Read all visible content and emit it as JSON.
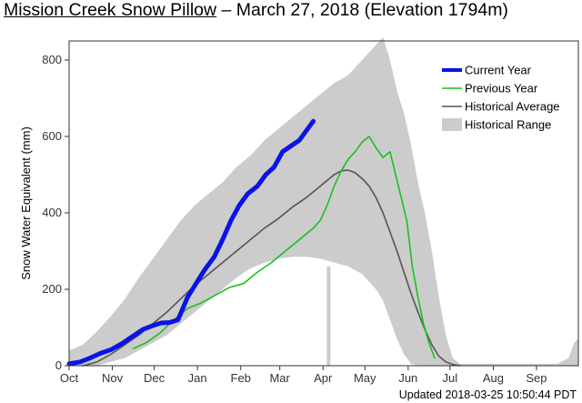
{
  "header": {
    "site": "Mission Creek Snow Pillow",
    "separator": " – ",
    "rest": "March 27, 2018 (Elevation 1794m)"
  },
  "footer": {
    "updated": "Updated 2018-03-25 10:50:44 PDT"
  },
  "chart_data": {
    "type": "line",
    "ylabel": "Snow Water Equivalent (mm)",
    "xlim": [
      0,
      365
    ],
    "ylim": [
      0,
      850
    ],
    "x_ticks": [
      {
        "label": "Oct",
        "x": 0
      },
      {
        "label": "Nov",
        "x": 31
      },
      {
        "label": "Dec",
        "x": 61
      },
      {
        "label": "Jan",
        "x": 92
      },
      {
        "label": "Feb",
        "x": 123
      },
      {
        "label": "Mar",
        "x": 151
      },
      {
        "label": "Apr",
        "x": 182
      },
      {
        "label": "May",
        "x": 212
      },
      {
        "label": "Jun",
        "x": 243
      },
      {
        "label": "Jul",
        "x": 273
      },
      {
        "label": "Aug",
        "x": 304
      },
      {
        "label": "Sep",
        "x": 335
      }
    ],
    "y_ticks": [
      0,
      200,
      400,
      600,
      800
    ],
    "legend_position": "top-right",
    "colors": {
      "current": "#0a14e6",
      "previous": "#19c219",
      "average": "#555555",
      "range": "#cccccc"
    },
    "legend": [
      {
        "key": "current",
        "label": "Current Year"
      },
      {
        "key": "previous",
        "label": "Previous Year"
      },
      {
        "key": "average",
        "label": "Historical Average"
      },
      {
        "key": "range",
        "label": "Historical Range"
      }
    ],
    "series": [
      {
        "name": "Current Year",
        "x": [
          0,
          8,
          15,
          22,
          30,
          38,
          46,
          53,
          60,
          66,
          72,
          78,
          85,
          91,
          97,
          104,
          110,
          116,
          122,
          128,
          135,
          141,
          147,
          153,
          159,
          165,
          170,
          175
        ],
        "y": [
          5,
          10,
          20,
          32,
          42,
          58,
          78,
          95,
          105,
          112,
          113,
          120,
          180,
          215,
          250,
          285,
          330,
          380,
          420,
          450,
          470,
          500,
          520,
          560,
          575,
          590,
          615,
          640
        ]
      },
      {
        "name": "Previous Year",
        "x": [
          46,
          55,
          65,
          75,
          85,
          95,
          105,
          115,
          125,
          135,
          145,
          155,
          165,
          175,
          180,
          185,
          190,
          195,
          200,
          205,
          210,
          215,
          220,
          225,
          230,
          234,
          238,
          242,
          246,
          250,
          254,
          258,
          262
        ],
        "y": [
          45,
          60,
          85,
          120,
          150,
          165,
          185,
          205,
          215,
          245,
          270,
          300,
          330,
          360,
          380,
          420,
          470,
          510,
          540,
          560,
          585,
          600,
          570,
          545,
          560,
          500,
          440,
          380,
          260,
          180,
          110,
          60,
          20
        ]
      },
      {
        "name": "Historical Average",
        "x": [
          10,
          20,
          30,
          40,
          50,
          60,
          70,
          80,
          90,
          100,
          110,
          120,
          130,
          140,
          150,
          160,
          170,
          180,
          190,
          195,
          200,
          205,
          210,
          215,
          220,
          225,
          230,
          235,
          240,
          245,
          250,
          255,
          260,
          265,
          270,
          275,
          280
        ],
        "y": [
          0,
          10,
          30,
          55,
          80,
          110,
          140,
          175,
          210,
          240,
          270,
          300,
          330,
          360,
          385,
          415,
          440,
          470,
          500,
          510,
          512,
          505,
          490,
          470,
          440,
          400,
          350,
          300,
          245,
          190,
          140,
          95,
          55,
          25,
          10,
          3,
          0
        ]
      },
      {
        "name": "Historical Range",
        "x": [
          0,
          10,
          20,
          30,
          40,
          50,
          60,
          70,
          80,
          90,
          100,
          110,
          120,
          130,
          140,
          150,
          160,
          170,
          180,
          190,
          200,
          210,
          220,
          225,
          230,
          235,
          240,
          245,
          250,
          255,
          260,
          265,
          270,
          275,
          280,
          290,
          300,
          310,
          320,
          330,
          340,
          350,
          358,
          362,
          365
        ],
        "upper": [
          40,
          55,
          90,
          130,
          175,
          230,
          280,
          330,
          380,
          420,
          450,
          480,
          520,
          550,
          590,
          620,
          650,
          680,
          710,
          740,
          760,
          800,
          840,
          860,
          800,
          720,
          660,
          580,
          480,
          400,
          300,
          180,
          80,
          20,
          5,
          5,
          5,
          5,
          5,
          5,
          5,
          5,
          20,
          60,
          70
        ],
        "lower": [
          0,
          0,
          0,
          10,
          20,
          40,
          60,
          80,
          110,
          140,
          170,
          200,
          230,
          255,
          270,
          280,
          285,
          285,
          280,
          270,
          260,
          240,
          200,
          170,
          120,
          70,
          30,
          5,
          0,
          0,
          0,
          0,
          0,
          0,
          0,
          0,
          0,
          0,
          0,
          0,
          0,
          0,
          0,
          0,
          0
        ]
      }
    ],
    "vertical_bar": {
      "x": 186,
      "value": 260
    }
  }
}
